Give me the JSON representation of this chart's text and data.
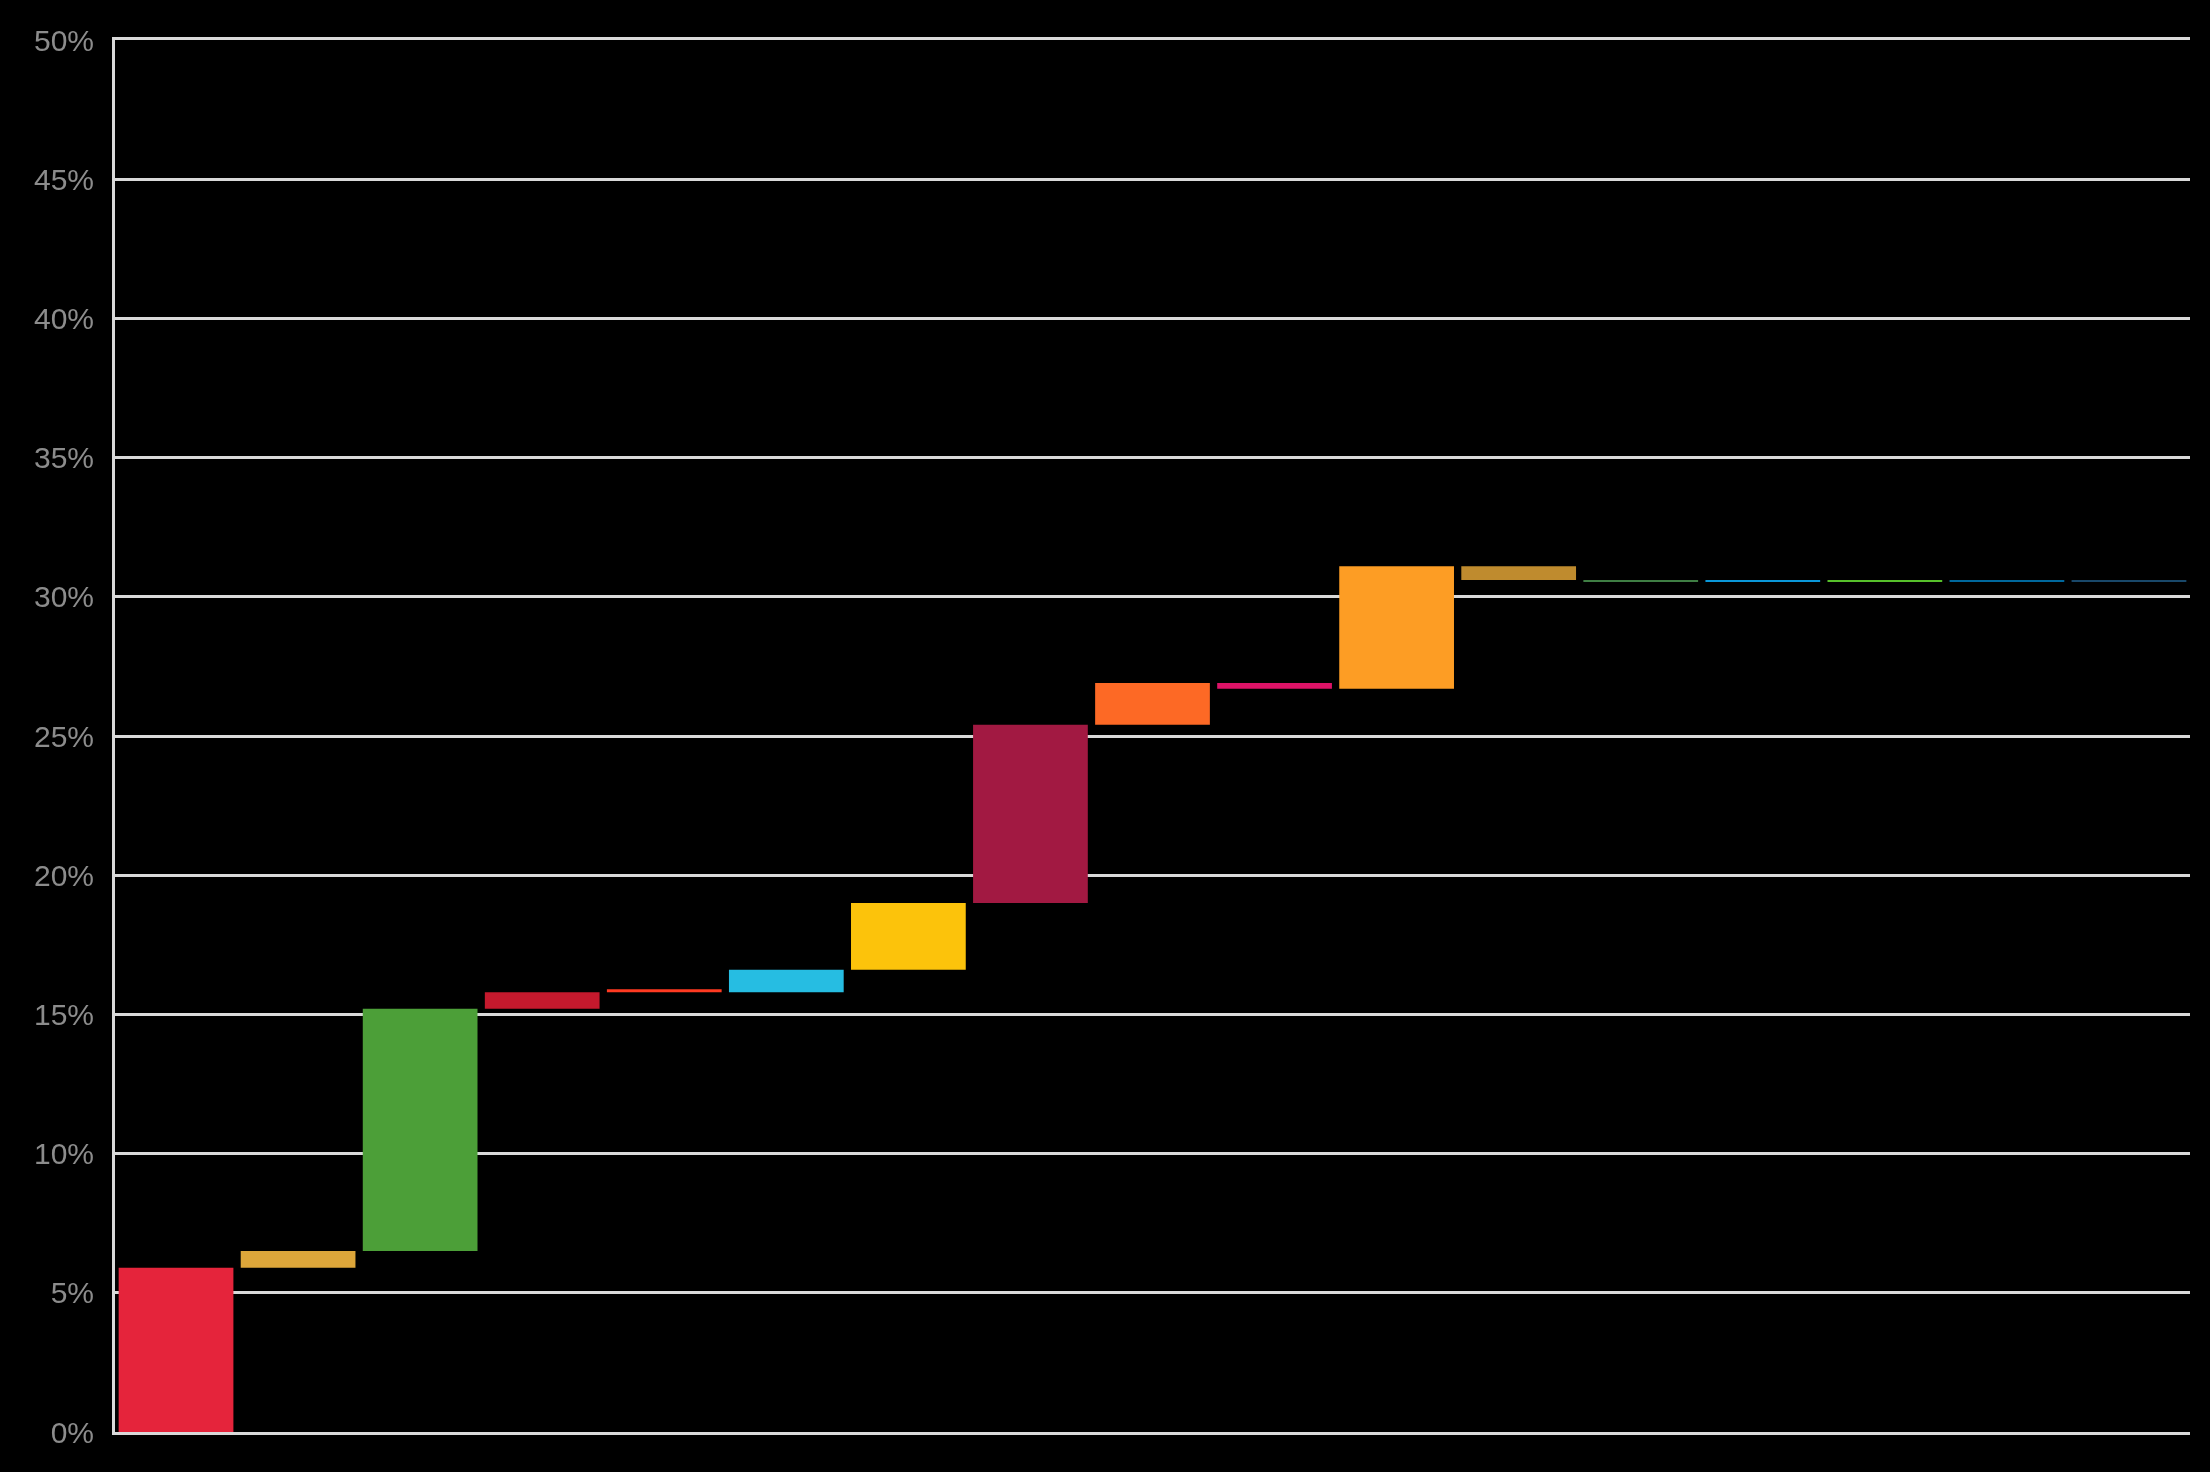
{
  "chart_data": {
    "type": "bar",
    "categories": [
      null,
      null,
      null,
      null,
      null,
      null,
      null,
      null,
      null,
      null,
      null,
      null,
      null,
      null,
      null,
      null,
      null
    ],
    "base": [
      0,
      5.9,
      6.5,
      15.2,
      15.8,
      15.8,
      16.6,
      19.0,
      25.4,
      26.7,
      26.7,
      30.6,
      30.55,
      30.55,
      30.55,
      30.55,
      30.55
    ],
    "values": [
      5.9,
      0.6,
      8.7,
      0.6,
      0.1,
      0.8,
      2.4,
      6.4,
      1.5,
      0.2,
      4.4,
      0.5,
      0.05,
      0.05,
      0.05,
      0.05,
      0.05
    ],
    "colors": [
      "#e5243b",
      "#dda63a",
      "#4c9f38",
      "#c5192d",
      "#ff3a21",
      "#26bde2",
      "#fcc30b",
      "#a21942",
      "#fd6925",
      "#dd1367",
      "#fd9d24",
      "#bf8b2e",
      "#3f7e44",
      "#0a97d9",
      "#56c02b",
      "#00689d",
      "#19486a"
    ],
    "ylim": [
      0,
      50
    ],
    "yticks": [
      {
        "value": 0,
        "label": "0%"
      },
      {
        "value": 5,
        "label": "5%"
      },
      {
        "value": 10,
        "label": "10%"
      },
      {
        "value": 15,
        "label": "15%"
      },
      {
        "value": 20,
        "label": "20%"
      },
      {
        "value": 25,
        "label": "25%"
      },
      {
        "value": 30,
        "label": "30%"
      },
      {
        "value": 35,
        "label": "35%"
      },
      {
        "value": 40,
        "label": "40%"
      },
      {
        "value": 45,
        "label": "45%"
      },
      {
        "value": 50,
        "label": "50%"
      }
    ],
    "grid": "y",
    "tick_labels": "y"
  }
}
